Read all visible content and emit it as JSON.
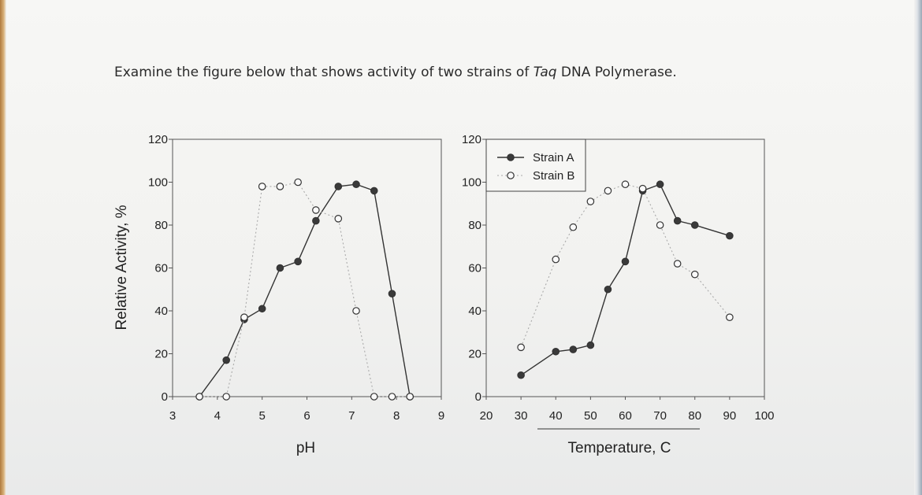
{
  "question": {
    "before": "Examine the figure below that shows activity of two strains of ",
    "italic": "Taq",
    "after": " DNA Polymerase."
  },
  "chart_data": [
    {
      "type": "line",
      "xlabel": "pH",
      "ylabel": "Relative Activity, %",
      "xlim": [
        3,
        9
      ],
      "ylim": [
        0,
        120
      ],
      "xticks": [
        "3",
        "4",
        "5",
        "6",
        "7",
        "8",
        "9"
      ],
      "yticks": [
        "0",
        "20",
        "40",
        "60",
        "80",
        "100",
        "120"
      ],
      "series": [
        {
          "name": "Strain A",
          "marker": "filled",
          "style": "solid",
          "x": [
            3.6,
            4.2,
            4.6,
            5.0,
            5.4,
            5.8,
            6.2,
            6.7,
            7.1,
            7.5,
            7.9,
            8.3
          ],
          "y": [
            0,
            17,
            36,
            41,
            60,
            63,
            82,
            98,
            99,
            96,
            48,
            0
          ]
        },
        {
          "name": "Strain B",
          "marker": "open",
          "style": "dotted",
          "x": [
            3.6,
            4.2,
            4.6,
            5.0,
            5.4,
            5.8,
            6.2,
            6.7,
            7.1,
            7.5,
            7.9,
            8.3
          ],
          "y": [
            0,
            0,
            37,
            98,
            98,
            100,
            87,
            83,
            40,
            0,
            0,
            0
          ]
        }
      ]
    },
    {
      "type": "line",
      "xlabel": "Temperature, C",
      "ylabel": "",
      "xlim": [
        20,
        100
      ],
      "ylim": [
        0,
        120
      ],
      "xticks": [
        "20",
        "30",
        "40",
        "50",
        "60",
        "70",
        "80",
        "90",
        "100"
      ],
      "yticks": [
        "0",
        "20",
        "40",
        "60",
        "80",
        "100",
        "120"
      ],
      "legend_position": "top-left",
      "series": [
        {
          "name": "Strain A",
          "marker": "filled",
          "style": "solid",
          "x": [
            30,
            40,
            45,
            50,
            55,
            60,
            65,
            70,
            75,
            80,
            90
          ],
          "y": [
            10,
            21,
            22,
            24,
            50,
            63,
            96,
            99,
            82,
            80,
            75
          ]
        },
        {
          "name": "Strain B",
          "marker": "open",
          "style": "dotted",
          "x": [
            30,
            40,
            45,
            50,
            55,
            60,
            65,
            70,
            75,
            80,
            90
          ],
          "y": [
            23,
            64,
            79,
            91,
            96,
            99,
            97,
            80,
            62,
            57,
            37
          ]
        }
      ]
    }
  ]
}
